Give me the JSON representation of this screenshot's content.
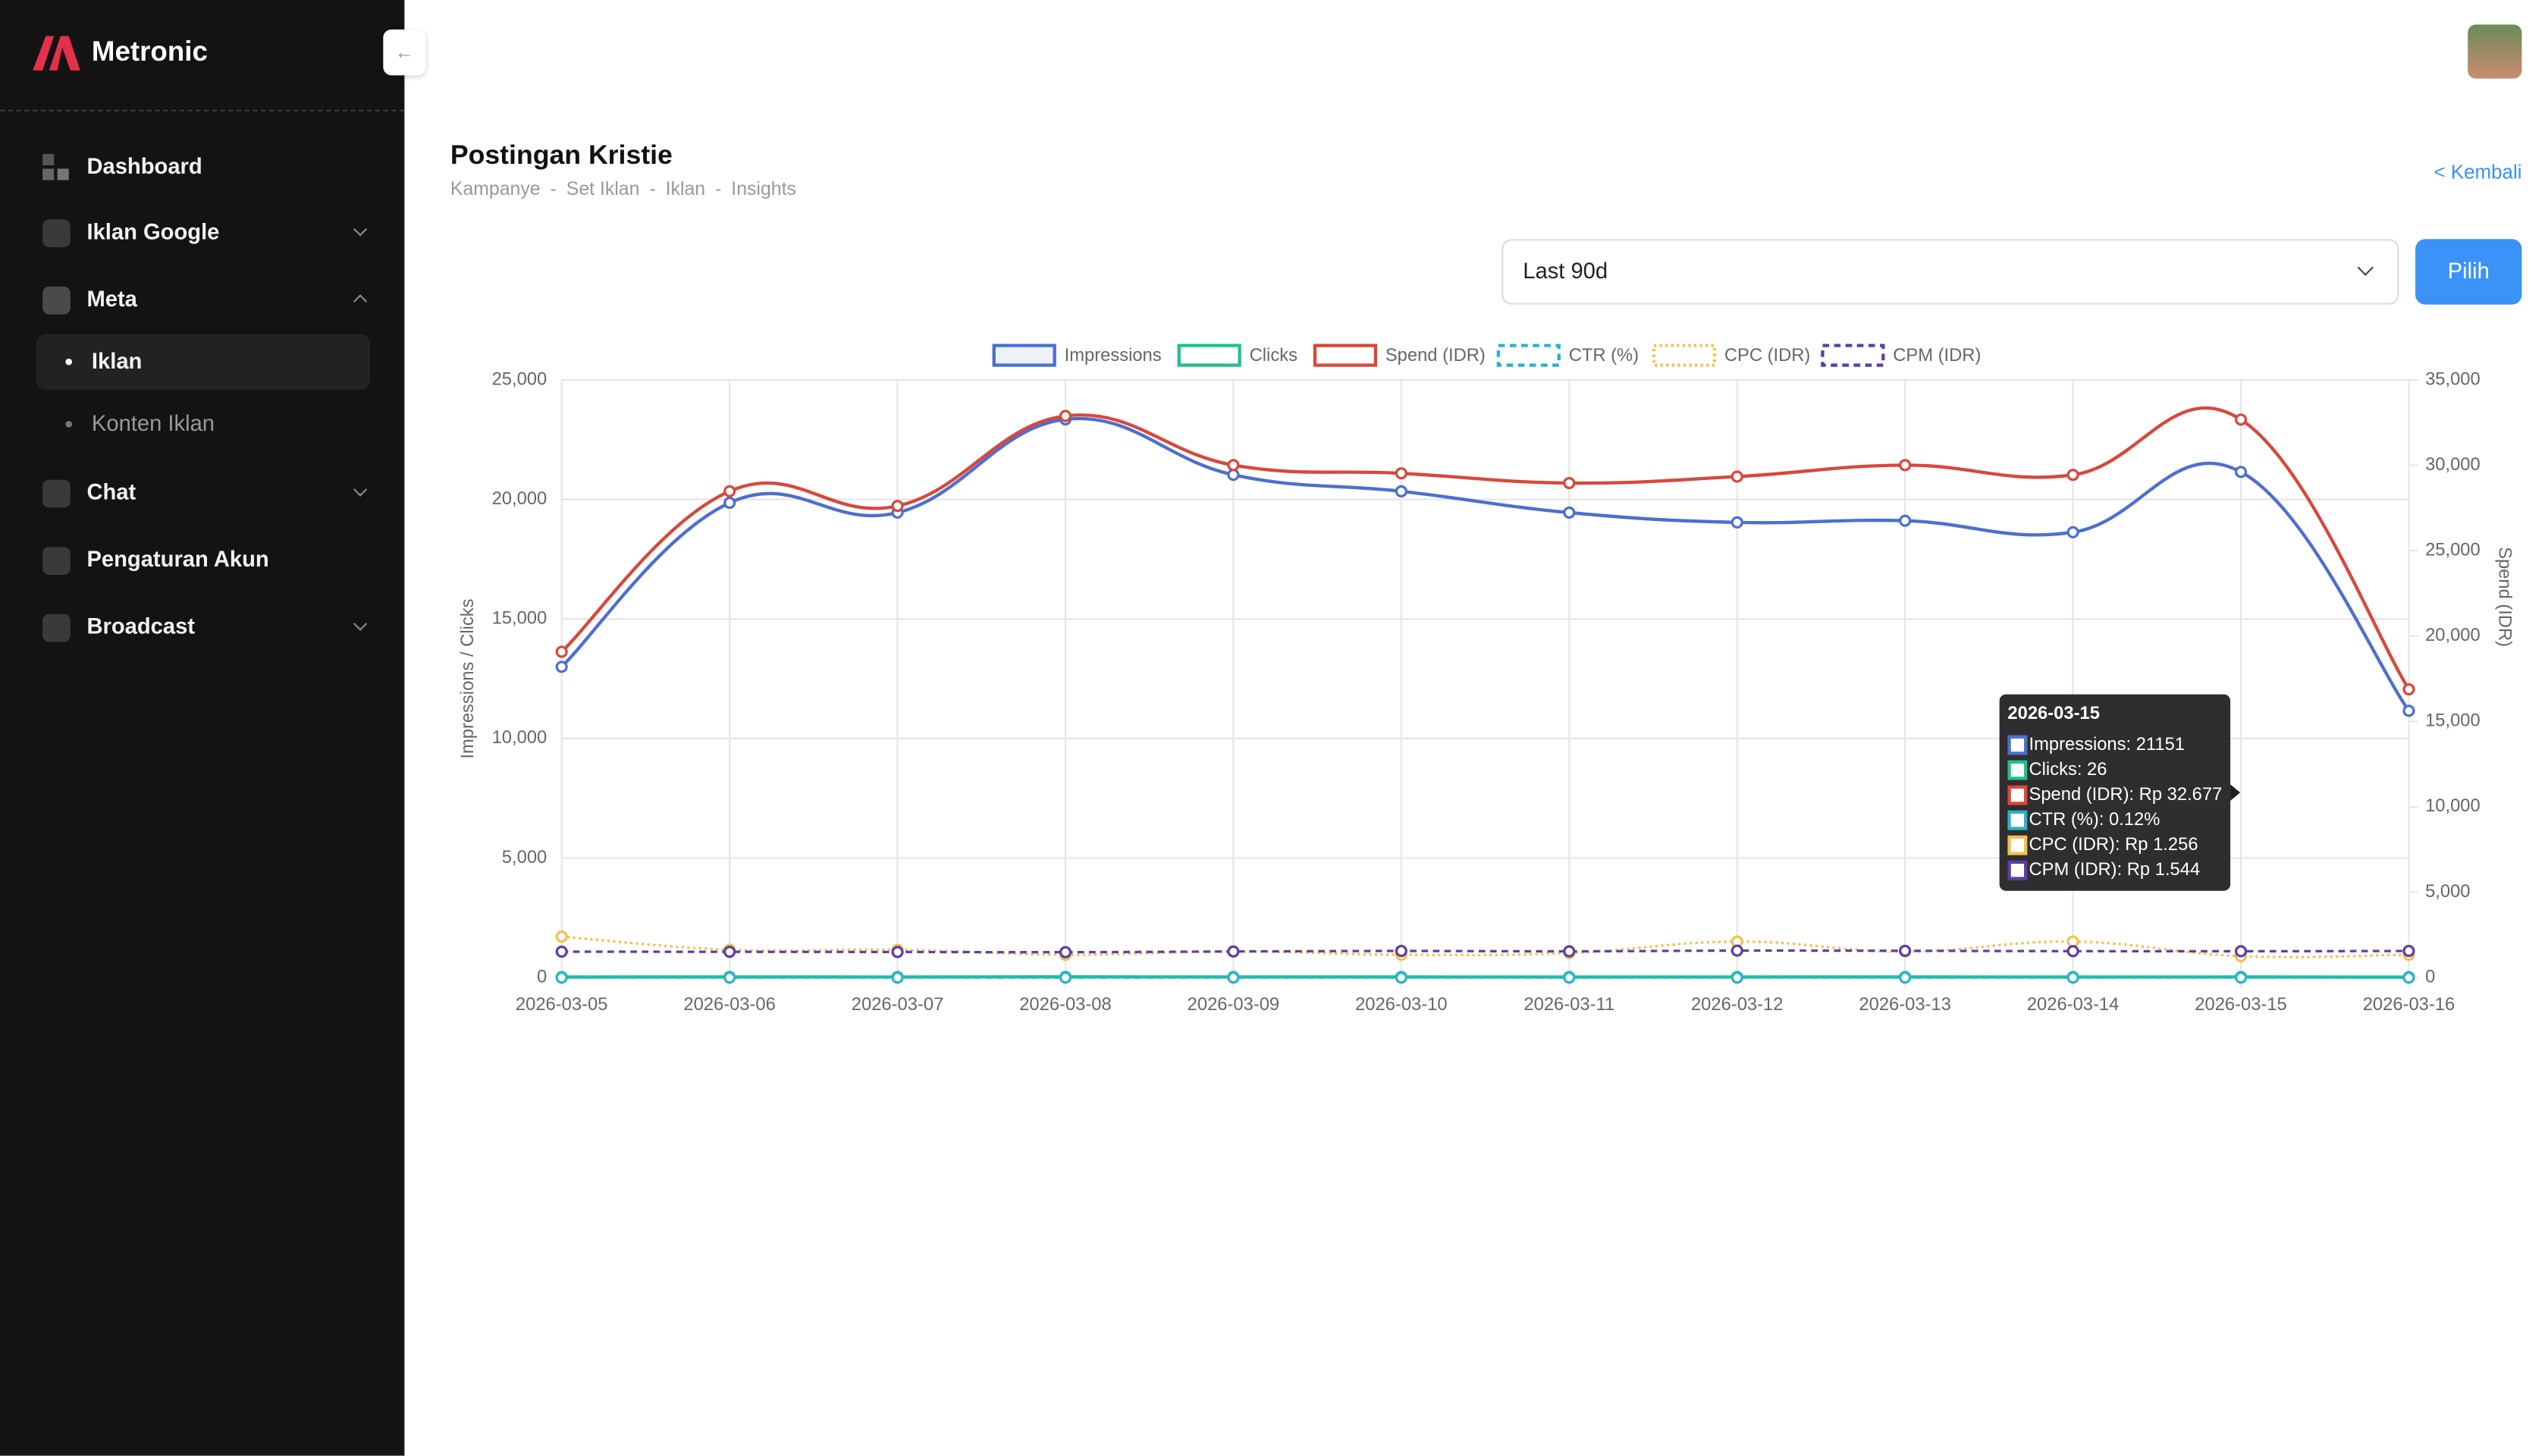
{
  "sidebar": {
    "brand": "Metronic",
    "menu": [
      {
        "label": "Dashboard"
      },
      {
        "label": "Iklan Google"
      },
      {
        "label": "Meta"
      },
      {
        "label": "Iklan"
      },
      {
        "label": "Konten Iklan"
      },
      {
        "label": "Chat"
      },
      {
        "label": "Pengaturan Akun"
      },
      {
        "label": "Broadcast"
      }
    ]
  },
  "page": {
    "title": "Postingan Kristie",
    "breadcrumb": [
      "Kampanye",
      "-",
      "Set Iklan",
      "-",
      "Iklan",
      "-",
      "Insights"
    ],
    "back": "< Kembali",
    "range": "Last 90d",
    "button": "Pilih"
  },
  "chart_data": {
    "type": "line",
    "categories": [
      "2026-03-05",
      "2026-03-06",
      "2026-03-07",
      "2026-03-08",
      "2026-03-09",
      "2026-03-10",
      "2026-03-11",
      "2026-03-12",
      "2026-03-13",
      "2026-03-14",
      "2026-03-15",
      "2026-03-16"
    ],
    "series": [
      {
        "name": "Impressions",
        "color": "#4c6fcf",
        "style": "solid",
        "axis": "y",
        "values": [
          13000,
          19860,
          19450,
          23350,
          21030,
          20340,
          19450,
          19040,
          19110,
          18630,
          21151,
          11160
        ]
      },
      {
        "name": "Clicks",
        "color": "#22c08a",
        "style": "solid",
        "axis": "y",
        "values": [
          22,
          28,
          25,
          31,
          27,
          26,
          24,
          25,
          27,
          24,
          26,
          18
        ]
      },
      {
        "name": "Spend (IDR)",
        "color": "#d9473b",
        "style": "solid",
        "axis": "y2",
        "values": [
          19080,
          28480,
          27620,
          32890,
          30010,
          29530,
          28960,
          29340,
          30010,
          29440,
          32677,
          16880
        ]
      },
      {
        "name": "CTR (%)",
        "color": "#2bb3c9",
        "style": "dashed",
        "axis": "y",
        "values": [
          0.17,
          0.14,
          0.13,
          0.13,
          0.13,
          0.13,
          0.12,
          0.13,
          0.14,
          0.13,
          0.12,
          0.16
        ]
      },
      {
        "name": "CPC (IDR)",
        "color": "#f2c14e",
        "style": "dotted",
        "axis": "y2",
        "values": [
          2400,
          1630,
          1630,
          1340,
          1530,
          1340,
          1440,
          2110,
          1530,
          2110,
          1256,
          1340
        ]
      },
      {
        "name": "CPM (IDR)",
        "color": "#5b3fa8",
        "style": "dashed",
        "axis": "y2",
        "values": [
          1520,
          1510,
          1500,
          1490,
          1530,
          1560,
          1540,
          1580,
          1570,
          1550,
          1544,
          1560
        ]
      }
    ],
    "ylim": [
      0,
      25000
    ],
    "yticks": [
      0,
      {
        "value": 5000,
        "label": "5,000"
      },
      {
        "value": 10000,
        "label": "10,000"
      },
      {
        "value": 15000,
        "label": "15,000"
      },
      {
        "value": 20000,
        "label": "20,000"
      },
      {
        "value": 25000,
        "label": "25,000"
      }
    ],
    "y2lim": [
      0,
      35000
    ],
    "y2ticks": [
      0,
      {
        "value": 5000,
        "label": "5,000"
      },
      {
        "value": 10000,
        "label": "10,000"
      },
      {
        "value": 15000,
        "label": "15,000"
      },
      {
        "value": 20000,
        "label": "20,000"
      },
      {
        "value": 25000,
        "label": "25,000"
      },
      {
        "value": 30000,
        "label": "30,000"
      },
      {
        "value": 35000,
        "label": "35,000"
      }
    ],
    "ylabel": "Impressions / Clicks",
    "y2label": "Spend (IDR)",
    "grid": true,
    "legend": "top",
    "tooltip": {
      "title": "2026-03-15",
      "items": [
        "Impressions: 21151",
        "Clicks: 26",
        "Spend (IDR): Rp 32.677",
        "CTR (%): 0.12%",
        "CPC (IDR): Rp 1.256",
        "CPM (IDR): Rp 1.544"
      ]
    }
  }
}
